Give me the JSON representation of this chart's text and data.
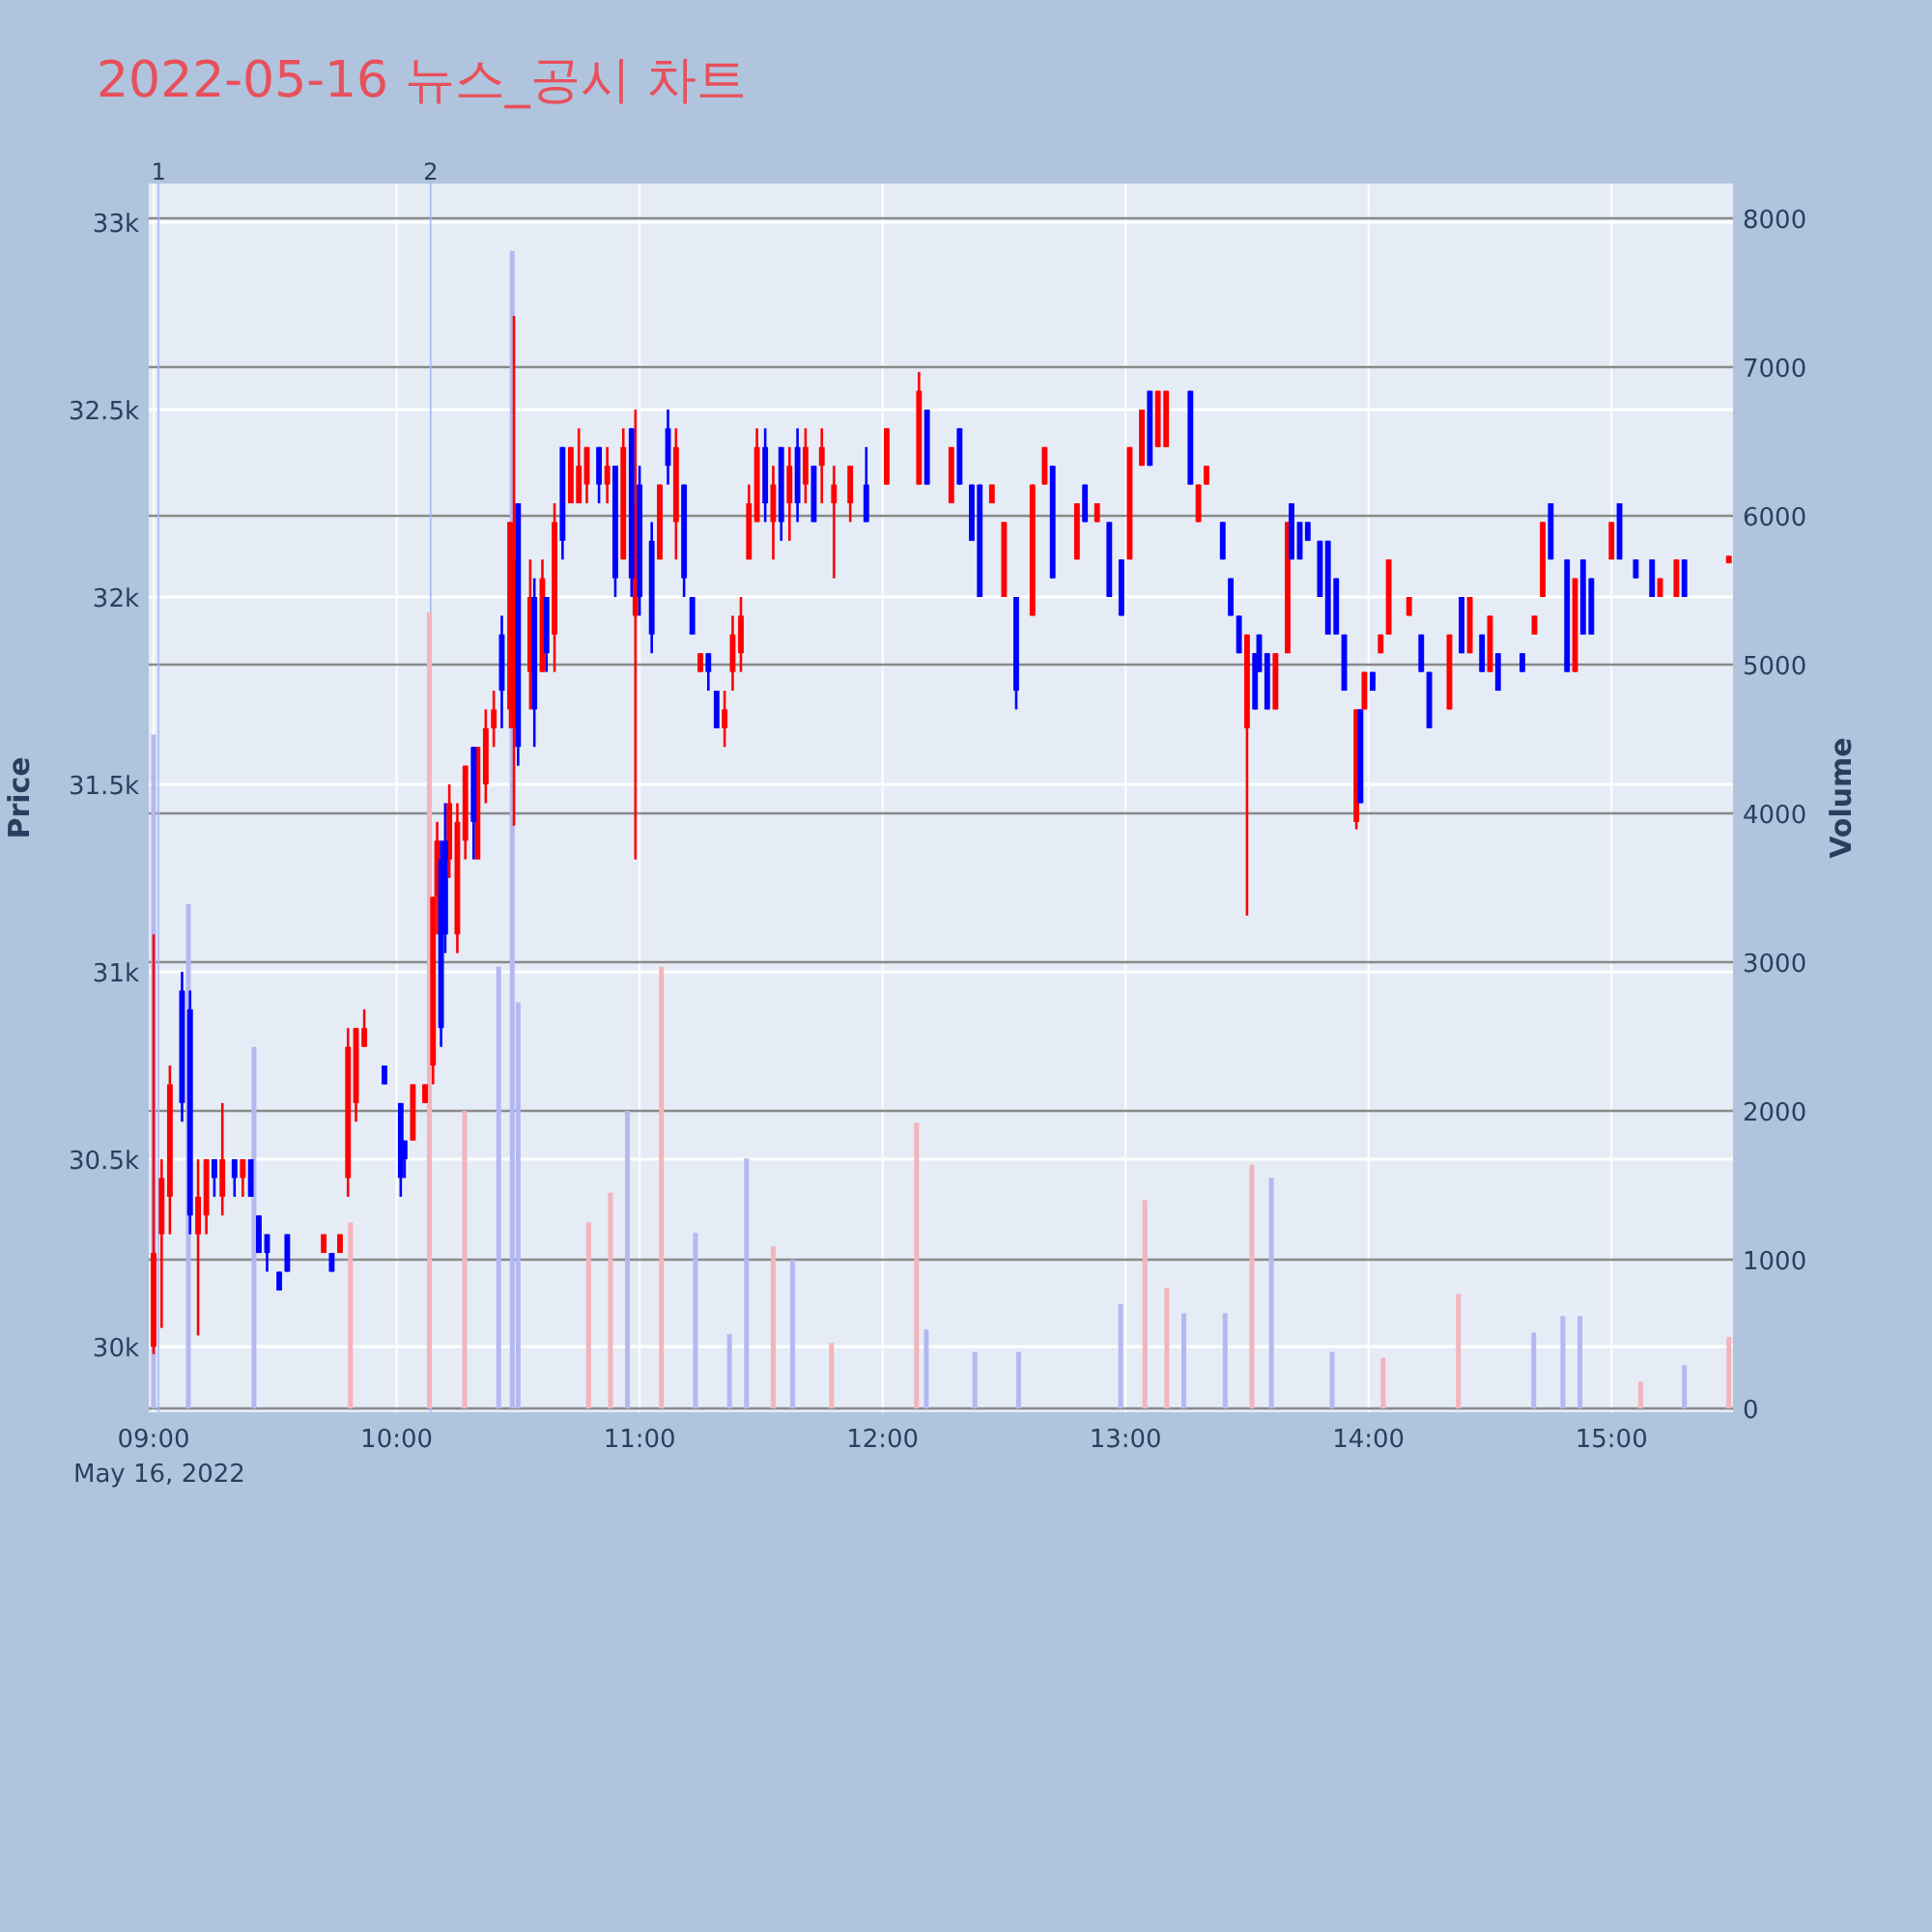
{
  "chart_data": {
    "type": "candlestick",
    "title": "2022-05-16 뉴스_공시 차트",
    "ylabel": "Price",
    "y2label": "Volume",
    "annotations": [
      "May 16, 2022",
      {
        "text": "1",
        "x": 9.02,
        "y": 33103
      },
      {
        "text": "2",
        "x": 10.14,
        "y": 33103
      }
    ],
    "xlim": [
      8.98,
      15.5
    ],
    "xticks": [
      {
        "value": 9,
        "label": "09:00"
      },
      {
        "value": 10,
        "label": "10:00"
      },
      {
        "value": 11,
        "label": "11:00"
      },
      {
        "value": 12,
        "label": "12:00"
      },
      {
        "value": 13,
        "label": "13:00"
      },
      {
        "value": 14,
        "label": "14:00"
      },
      {
        "value": 15,
        "label": "15:00"
      }
    ],
    "ylim": [
      29825,
      33103
    ],
    "yticks": [
      {
        "value": 30000,
        "label": "30k"
      },
      {
        "value": 30500,
        "label": "30.5k"
      },
      {
        "value": 31000,
        "label": "31k"
      },
      {
        "value": 31500,
        "label": "31.5k"
      },
      {
        "value": 32000,
        "label": "32k"
      },
      {
        "value": 32500,
        "label": "32.5k"
      },
      {
        "value": 33000,
        "label": "33k"
      }
    ],
    "y2lim": [
      -26,
      8234
    ],
    "y2ticks": [
      0,
      1000,
      2000,
      3000,
      4000,
      5000,
      6000,
      7000,
      8000
    ],
    "grid": true,
    "ref_lines": [
      {
        "axis": "x",
        "value": 9.02,
        "color": "#a8b8f0"
      },
      {
        "axis": "x",
        "value": 10.14,
        "color": "#a8b8f0"
      }
    ],
    "series": [
      {
        "type": "bar",
        "axis": "y2",
        "color": "#f4b4bc",
        "x": [
          9.81,
          10.135,
          10.28,
          10.79,
          10.88,
          11.09,
          11.55,
          11.79,
          12.14,
          13.08,
          13.17,
          13.52,
          14.06,
          14.37,
          15.12,
          15.483
        ],
        "values": [
          1250,
          5350,
          2000,
          1250,
          1450,
          2970,
          1090,
          440,
          1920,
          1400,
          810,
          1640,
          340,
          770,
          180,
          480
        ]
      },
      {
        "type": "bar",
        "axis": "y2",
        "color": "#b4b8f2",
        "x": [
          9.0,
          9.143,
          9.413,
          10.42,
          10.476,
          10.5,
          10.95,
          11.23,
          11.37,
          11.44,
          11.63,
          12.18,
          12.38,
          12.56,
          12.98,
          13.24,
          13.41,
          13.6,
          13.85,
          14.68,
          14.8,
          14.87,
          15.3
        ],
        "values": [
          4530,
          3390,
          2430,
          2970,
          7780,
          2730,
          2000,
          1180,
          500,
          1680,
          1000,
          530,
          380,
          380,
          700,
          640,
          640,
          1550,
          380,
          510,
          620,
          620,
          290
        ]
      },
      {
        "color": "#ff0000",
        "x": [
          9.0,
          9.033,
          9.067,
          9.183,
          9.217,
          9.283,
          9.367,
          9.7,
          9.767,
          9.8,
          9.833,
          9.867,
          10.067,
          10.117,
          10.15,
          10.167,
          10.217,
          10.25,
          10.283,
          10.333,
          10.367,
          10.4,
          10.467,
          10.483,
          10.55,
          10.6,
          10.65,
          10.717,
          10.75,
          10.783,
          10.867,
          10.933,
          10.983,
          11.083,
          11.15,
          11.25,
          11.35,
          11.383,
          11.417,
          11.45,
          11.483,
          11.55,
          11.617,
          11.683,
          11.75,
          11.8,
          11.867,
          12.017,
          12.15,
          12.283,
          12.45,
          12.5,
          12.617,
          12.667,
          12.8,
          12.883,
          13.017,
          13.067,
          13.133,
          13.167,
          13.3,
          13.333,
          13.5,
          13.617,
          13.667,
          13.95,
          13.983,
          14.05,
          14.083,
          14.167,
          14.333,
          14.417,
          14.5,
          14.683,
          14.717,
          14.85,
          15.0,
          15.2,
          15.267,
          15.483
        ],
        "ohlc": [
          [
            30000,
            31100,
            29980,
            30250
          ],
          [
            30300,
            30500,
            30050,
            30450
          ],
          [
            30400,
            30750,
            30300,
            30700
          ],
          [
            30300,
            30500,
            30030,
            30400
          ],
          [
            30350,
            30500,
            30300,
            30500
          ],
          [
            30400,
            30650,
            30350,
            30500
          ],
          [
            30450,
            30500,
            30400,
            30500
          ],
          [
            30250,
            30300,
            30250,
            30300
          ],
          [
            30250,
            30300,
            30250,
            30300
          ],
          [
            30450,
            30850,
            30400,
            30800
          ],
          [
            30650,
            30850,
            30600,
            30850
          ],
          [
            30800,
            30900,
            30800,
            30850
          ],
          [
            30550,
            30700,
            30550,
            30700
          ],
          [
            30650,
            30700,
            30650,
            30700
          ],
          [
            30750,
            31200,
            30700,
            31200
          ],
          [
            31200,
            31400,
            31100,
            31350
          ],
          [
            31300,
            31500,
            31250,
            31450
          ],
          [
            31100,
            31450,
            31050,
            31400
          ],
          [
            31350,
            31550,
            31300,
            31550
          ],
          [
            31300,
            31600,
            31300,
            31600
          ],
          [
            31500,
            31700,
            31450,
            31650
          ],
          [
            31650,
            31750,
            31600,
            31700
          ],
          [
            31700,
            32200,
            31650,
            32200
          ],
          [
            31650,
            32750,
            31390,
            32100
          ],
          [
            31800,
            32100,
            31700,
            32000
          ],
          [
            31800,
            32100,
            31800,
            32050
          ],
          [
            31900,
            32250,
            31800,
            32200
          ],
          [
            32250,
            32400,
            32250,
            32400
          ],
          [
            32250,
            32450,
            32250,
            32350
          ],
          [
            32300,
            32400,
            32250,
            32400
          ],
          [
            32300,
            32400,
            32250,
            32350
          ],
          [
            32100,
            32450,
            32100,
            32400
          ],
          [
            31950,
            32500,
            31300,
            32250
          ],
          [
            32100,
            32300,
            32100,
            32300
          ],
          [
            32200,
            32450,
            32100,
            32400
          ],
          [
            31800,
            31850,
            31800,
            31850
          ],
          [
            31650,
            31750,
            31600,
            31700
          ],
          [
            31800,
            31950,
            31750,
            31900
          ],
          [
            31850,
            32000,
            31800,
            31950
          ],
          [
            32100,
            32300,
            32100,
            32250
          ],
          [
            32200,
            32450,
            32200,
            32400
          ],
          [
            32200,
            32350,
            32100,
            32300
          ],
          [
            32250,
            32400,
            32150,
            32350
          ],
          [
            32300,
            32450,
            32250,
            32400
          ],
          [
            32350,
            32450,
            32250,
            32400
          ],
          [
            32250,
            32350,
            32050,
            32300
          ],
          [
            32250,
            32350,
            32200,
            32350
          ],
          [
            32300,
            32450,
            32300,
            32450
          ],
          [
            32300,
            32600,
            32300,
            32550
          ],
          [
            32250,
            32400,
            32250,
            32400
          ],
          [
            32250,
            32300,
            32250,
            32300
          ],
          [
            32000,
            32200,
            32000,
            32200
          ],
          [
            31950,
            32300,
            31950,
            32300
          ],
          [
            32300,
            32400,
            32300,
            32400
          ],
          [
            32100,
            32250,
            32100,
            32250
          ],
          [
            32200,
            32250,
            32200,
            32250
          ],
          [
            32100,
            32400,
            32100,
            32400
          ],
          [
            32350,
            32500,
            32350,
            32500
          ],
          [
            32400,
            32550,
            32400,
            32550
          ],
          [
            32400,
            32550,
            32400,
            32550
          ],
          [
            32200,
            32300,
            32200,
            32300
          ],
          [
            32300,
            32350,
            32300,
            32350
          ],
          [
            31650,
            31900,
            31150,
            31900
          ],
          [
            31700,
            31850,
            31700,
            31850
          ],
          [
            31850,
            32200,
            31850,
            32200
          ],
          [
            31400,
            31700,
            31380,
            31700
          ],
          [
            31700,
            31800,
            31700,
            31800
          ],
          [
            31850,
            31900,
            31850,
            31900
          ],
          [
            31900,
            32100,
            31900,
            32100
          ],
          [
            31950,
            32000,
            31950,
            32000
          ],
          [
            31700,
            31900,
            31700,
            31900
          ],
          [
            31850,
            32000,
            31850,
            32000
          ],
          [
            31800,
            31950,
            31800,
            31950
          ],
          [
            31900,
            31950,
            31900,
            31950
          ],
          [
            32000,
            32200,
            32000,
            32200
          ],
          [
            31800,
            32050,
            31800,
            32050
          ],
          [
            32100,
            32200,
            32100,
            32200
          ],
          [
            32000,
            32050,
            32000,
            32050
          ],
          [
            32000,
            32100,
            32000,
            32100
          ],
          [
            32090,
            32110,
            32090,
            32110
          ]
        ]
      },
      {
        "color": "#0000ff",
        "x": [
          9.117,
          9.15,
          9.25,
          9.333,
          9.4,
          9.433,
          9.467,
          9.517,
          9.55,
          9.733,
          9.95,
          10.017,
          10.033,
          10.183,
          10.2,
          10.317,
          10.433,
          10.5,
          10.567,
          10.617,
          10.683,
          10.833,
          10.9,
          10.967,
          11.0,
          11.05,
          11.117,
          11.183,
          11.217,
          11.283,
          11.317,
          11.517,
          11.583,
          11.65,
          11.717,
          11.933,
          12.183,
          12.317,
          12.367,
          12.4,
          12.55,
          12.7,
          12.833,
          12.933,
          12.983,
          13.1,
          13.267,
          13.4,
          13.433,
          13.467,
          13.533,
          13.55,
          13.583,
          13.683,
          13.717,
          13.75,
          13.8,
          13.833,
          13.867,
          13.9,
          13.967,
          14.017,
          14.217,
          14.25,
          14.383,
          14.467,
          14.533,
          14.633,
          14.75,
          14.817,
          14.883,
          14.917,
          15.033,
          15.1,
          15.167,
          15.3
        ],
        "ohlc": [
          [
            30950,
            31000,
            30600,
            30650
          ],
          [
            30900,
            30950,
            30300,
            30350
          ],
          [
            30500,
            30500,
            30400,
            30450
          ],
          [
            30500,
            30500,
            30400,
            30450
          ],
          [
            30500,
            30500,
            30400,
            30400
          ],
          [
            30350,
            30350,
            30250,
            30250
          ],
          [
            30300,
            30300,
            30200,
            30250
          ],
          [
            30200,
            30200,
            30150,
            30150
          ],
          [
            30300,
            30300,
            30200,
            30200
          ],
          [
            30250,
            30250,
            30200,
            30200
          ],
          [
            30750,
            30750,
            30700,
            30700
          ],
          [
            30650,
            30650,
            30400,
            30450
          ],
          [
            30550,
            30550,
            30450,
            30500
          ],
          [
            31300,
            31350,
            30800,
            30850
          ],
          [
            31350,
            31450,
            31050,
            31100
          ],
          [
            31600,
            31600,
            31300,
            31400
          ],
          [
            31900,
            31950,
            31650,
            31750
          ],
          [
            32250,
            32250,
            31550,
            31600
          ],
          [
            32000,
            32050,
            31600,
            31700
          ],
          [
            32000,
            32000,
            31800,
            31850
          ],
          [
            32400,
            32400,
            32100,
            32150
          ],
          [
            32400,
            32400,
            32250,
            32300
          ],
          [
            32350,
            32350,
            32000,
            32050
          ],
          [
            32450,
            32450,
            32000,
            32050
          ],
          [
            32300,
            32350,
            31950,
            32000
          ],
          [
            32150,
            32200,
            31850,
            31900
          ],
          [
            32450,
            32500,
            32300,
            32350
          ],
          [
            32300,
            32300,
            32000,
            32050
          ],
          [
            32000,
            32000,
            31900,
            31900
          ],
          [
            31850,
            31850,
            31750,
            31800
          ],
          [
            31750,
            31750,
            31650,
            31650
          ],
          [
            32400,
            32450,
            32200,
            32250
          ],
          [
            32400,
            32400,
            32150,
            32200
          ],
          [
            32400,
            32450,
            32200,
            32250
          ],
          [
            32350,
            32350,
            32200,
            32200
          ],
          [
            32300,
            32400,
            32200,
            32200
          ],
          [
            32500,
            32500,
            32300,
            32300
          ],
          [
            32450,
            32450,
            32300,
            32300
          ],
          [
            32300,
            32300,
            32150,
            32150
          ],
          [
            32300,
            32300,
            32000,
            32000
          ],
          [
            32000,
            32000,
            31700,
            31750
          ],
          [
            32350,
            32350,
            32050,
            32050
          ],
          [
            32300,
            32300,
            32200,
            32200
          ],
          [
            32200,
            32200,
            32000,
            32000
          ],
          [
            32100,
            32100,
            31950,
            31950
          ],
          [
            32550,
            32550,
            32350,
            32350
          ],
          [
            32550,
            32550,
            32300,
            32300
          ],
          [
            32200,
            32200,
            32100,
            32100
          ],
          [
            32050,
            32050,
            31950,
            31950
          ],
          [
            31950,
            31950,
            31850,
            31850
          ],
          [
            31850,
            31850,
            31700,
            31700
          ],
          [
            31900,
            31900,
            31800,
            31800
          ],
          [
            31850,
            31850,
            31700,
            31700
          ],
          [
            32250,
            32250,
            32100,
            32100
          ],
          [
            32200,
            32200,
            32100,
            32100
          ],
          [
            32200,
            32200,
            32150,
            32150
          ],
          [
            32150,
            32150,
            32000,
            32000
          ],
          [
            32150,
            32150,
            31900,
            31900
          ],
          [
            32050,
            32050,
            31900,
            31900
          ],
          [
            31900,
            31900,
            31750,
            31750
          ],
          [
            31700,
            31700,
            31450,
            31450
          ],
          [
            31800,
            31800,
            31750,
            31750
          ],
          [
            31900,
            31900,
            31800,
            31800
          ],
          [
            31800,
            31800,
            31650,
            31650
          ],
          [
            32000,
            32000,
            31850,
            31850
          ],
          [
            31900,
            31900,
            31800,
            31800
          ],
          [
            31850,
            31850,
            31750,
            31750
          ],
          [
            31850,
            31850,
            31800,
            31800
          ],
          [
            32250,
            32250,
            32100,
            32100
          ],
          [
            32100,
            32100,
            31800,
            31800
          ],
          [
            32100,
            32100,
            31900,
            31900
          ],
          [
            32050,
            32050,
            31900,
            31900
          ],
          [
            32250,
            32250,
            32100,
            32100
          ],
          [
            32100,
            32100,
            32050,
            32050
          ],
          [
            32100,
            32100,
            32000,
            32000
          ],
          [
            32100,
            32100,
            32000,
            32000
          ]
        ]
      }
    ]
  }
}
